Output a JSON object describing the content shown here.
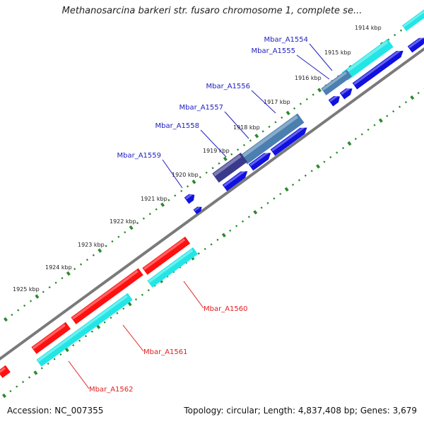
{
  "title": "Methanosarcina barkeri str. fusaro chromosome 1, complete se...",
  "footer": {
    "accession": "Accession: NC_007355",
    "topology": "Topology: circular; Length: 4,837,408 bp; Genes: 3,679"
  },
  "colors": {
    "tick": "#2a8a2a",
    "backbone": "#7a7a7a",
    "forward_label": "#2020c0",
    "reverse_label": "#e02020",
    "forward_arrow": "#1010e0",
    "reverse_arrow": "#ff1010",
    "cyan": "#22e6e6",
    "steel": "#4a7fb0",
    "indigo": "#3a3a8c"
  },
  "ruler_labels": [
    "1914 kbp",
    "1915 kbp",
    "1916 kbp",
    "1917 kbp",
    "1918 kbp",
    "1919 kbp",
    "1920 kbp",
    "1921 kbp",
    "1922 kbp",
    "1923 kbp",
    "1924 kbp",
    "1925 kbp"
  ],
  "forward_genes": [
    "Mbar_A1554",
    "Mbar_A1555",
    "Mbar_A1556",
    "Mbar_A1557",
    "Mbar_A1558",
    "Mbar_A1559"
  ],
  "reverse_genes": [
    "Mbar_A1560",
    "Mbar_A1561",
    "Mbar_A1562"
  ]
}
